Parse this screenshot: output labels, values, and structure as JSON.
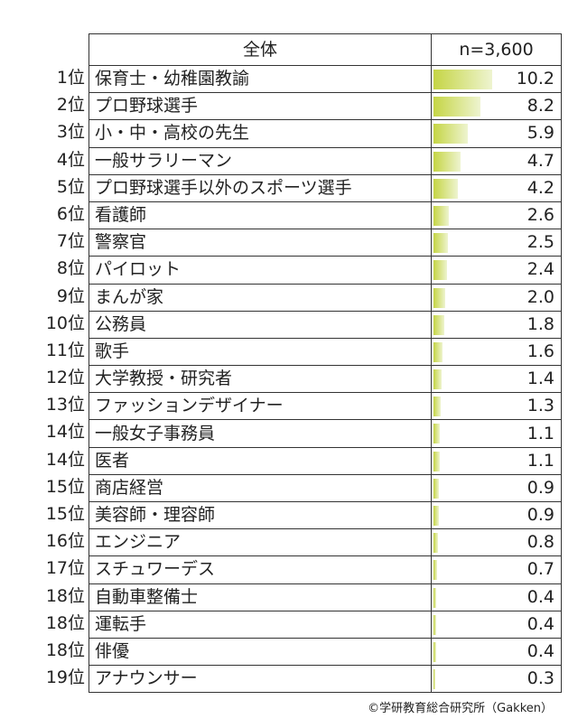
{
  "header": {
    "col_job": "全体",
    "col_value": "n=3,600"
  },
  "rows": [
    {
      "rank": "1位",
      "job": "保育士・幼稚園教諭",
      "value": 10.2
    },
    {
      "rank": "2位",
      "job": "プロ野球選手",
      "value": 8.2
    },
    {
      "rank": "3位",
      "job": "小・中・高校の先生",
      "value": 5.9
    },
    {
      "rank": "4位",
      "job": "一般サラリーマン",
      "value": 4.7
    },
    {
      "rank": "5位",
      "job": "プロ野球選手以外のスポーツ選手",
      "value": 4.2
    },
    {
      "rank": "6位",
      "job": "看護師",
      "value": 2.6
    },
    {
      "rank": "7位",
      "job": "警察官",
      "value": 2.5
    },
    {
      "rank": "8位",
      "job": "パイロット",
      "value": 2.4
    },
    {
      "rank": "9位",
      "job": "まんが家",
      "value": 2.0
    },
    {
      "rank": "10位",
      "job": "公務員",
      "value": 1.8
    },
    {
      "rank": "11位",
      "job": "歌手",
      "value": 1.6
    },
    {
      "rank": "12位",
      "job": "大学教授・研究者",
      "value": 1.4
    },
    {
      "rank": "13位",
      "job": "ファッションデザイナー",
      "value": 1.3
    },
    {
      "rank": "14位",
      "job": "一般女子事務員",
      "value": 1.1
    },
    {
      "rank": "14位",
      "job": "医者",
      "value": 1.1
    },
    {
      "rank": "15位",
      "job": "商店経営",
      "value": 0.9
    },
    {
      "rank": "15位",
      "job": "美容師・理容師",
      "value": 0.9
    },
    {
      "rank": "16位",
      "job": "エンジニア",
      "value": 0.8
    },
    {
      "rank": "17位",
      "job": "スチュワーデス",
      "value": 0.7
    },
    {
      "rank": "18位",
      "job": "自動車整備士",
      "value": 0.4
    },
    {
      "rank": "18位",
      "job": "運転手",
      "value": 0.4
    },
    {
      "rank": "18位",
      "job": "俳優",
      "value": 0.4
    },
    {
      "rank": "19位",
      "job": "アナウンサー",
      "value": 0.3
    }
  ],
  "bar_color": "#c5d545",
  "credit": "©学研教育総合研究所（Gakken）"
}
